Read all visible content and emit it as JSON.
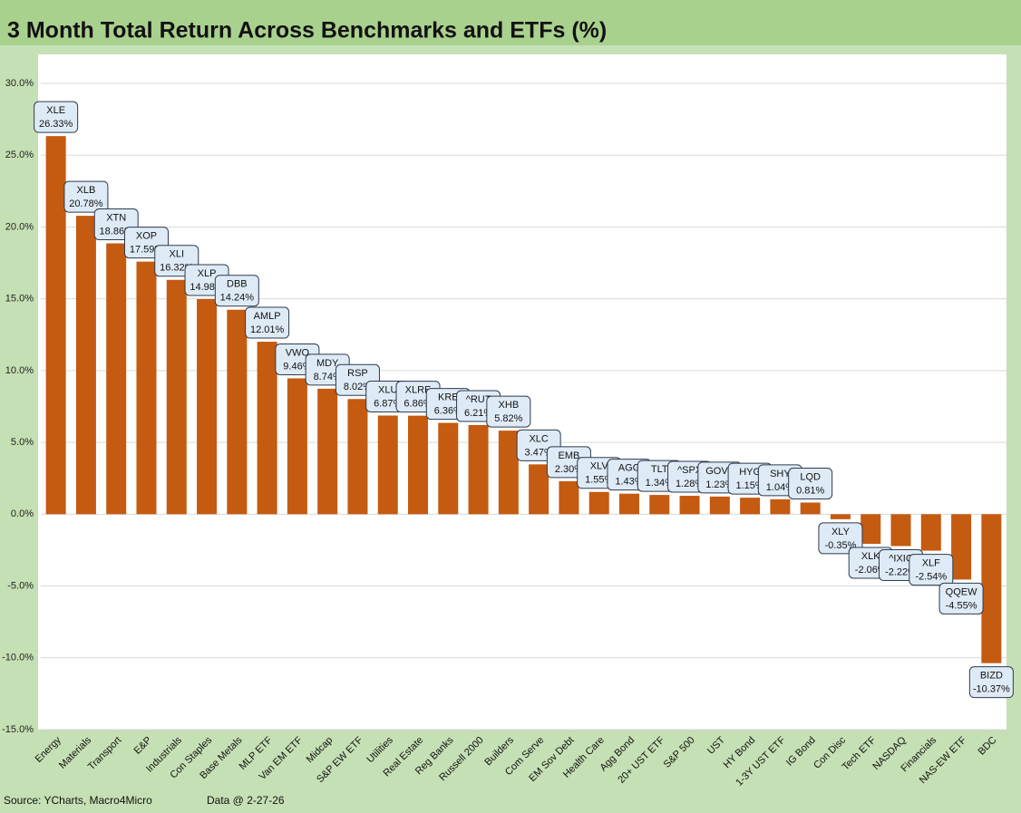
{
  "chart_data": {
    "type": "bar",
    "title": "3 Month Total Return Across Benchmarks and ETFs (%)",
    "categories": [
      "Energy",
      "Materials",
      "Transport",
      "E&P",
      "Industrials",
      "Con Staples",
      "Base Metals",
      "MLP ETF",
      "Van EM ETF",
      "Midcap",
      "S&P EW ETF",
      "Utilities",
      "Real Estate",
      "Reg Banks",
      "Russell 2000",
      "Builders",
      "Com Serve",
      "EM Sov Debt",
      "Health Care",
      "Agg Bond",
      "20+ UST ETF",
      "S&P 500",
      "UST",
      "HY Bond",
      "1-3Y UST ETF",
      "IG Bond",
      "Con Disc",
      "Tech ETF",
      "NASDAQ",
      "Financials",
      "NAS-EW ETF",
      "BDC"
    ],
    "tickers": [
      "XLE",
      "XLB",
      "XTN",
      "XOP",
      "XLI",
      "XLP",
      "DBB",
      "AMLP",
      "VWO",
      "MDY",
      "RSP",
      "XLU",
      "XLRE",
      "KRE",
      "^RUT",
      "XHB",
      "XLC",
      "EMB",
      "XLV",
      "AGG",
      "TLT",
      "^SPX",
      "GOVT",
      "HYG",
      "SHY",
      "LQD",
      "XLY",
      "XLK",
      "^IXIC",
      "XLF",
      "QQEW",
      "BIZD"
    ],
    "values": [
      26.33,
      20.78,
      18.86,
      17.59,
      16.32,
      14.98,
      14.24,
      12.01,
      9.46,
      8.74,
      8.02,
      6.87,
      6.86,
      6.36,
      6.21,
      5.82,
      3.47,
      2.3,
      1.55,
      1.43,
      1.34,
      1.28,
      1.23,
      1.15,
      1.04,
      0.81,
      -0.35,
      -2.06,
      -2.22,
      -2.54,
      -4.55,
      -10.37
    ],
    "value_labels": [
      "26.33%",
      "20.78%",
      "18.86%",
      "17.59%",
      "16.32%",
      "14.98%",
      "14.24%",
      "12.01%",
      "9.46%",
      "8.74%",
      "8.02%",
      "6.87%",
      "6.86%",
      "6.36%",
      "6.21%",
      "5.82%",
      "3.47%",
      "2.30%",
      "1.55%",
      "1.43%",
      "1.34%",
      "1.28%",
      "1.23%",
      "1.15%",
      "1.04%",
      "0.81%",
      "-0.35%",
      "-2.06%",
      "-2.22%",
      "-2.54%",
      "-4.55%",
      "-10.37%"
    ],
    "color": "#c55a11",
    "ylim": [
      -15,
      30
    ],
    "yticks": [
      {
        "value": -15,
        "label": "-15.0%"
      },
      {
        "value": -10,
        "label": "-10.0%"
      },
      {
        "value": -5,
        "label": "-5.0%"
      },
      {
        "value": 0,
        "label": "0.0%"
      },
      {
        "value": 5,
        "label": "5.0%"
      },
      {
        "value": 10,
        "label": "10.0%"
      },
      {
        "value": 15,
        "label": "15.0%"
      },
      {
        "value": 20,
        "label": "20.0%"
      },
      {
        "value": 25,
        "label": "25.0%"
      },
      {
        "value": 30,
        "label": "30.0%"
      }
    ],
    "grid": true,
    "source": "Source: YCharts, Macro4Micro",
    "note": "Data @ 2-27-26"
  }
}
